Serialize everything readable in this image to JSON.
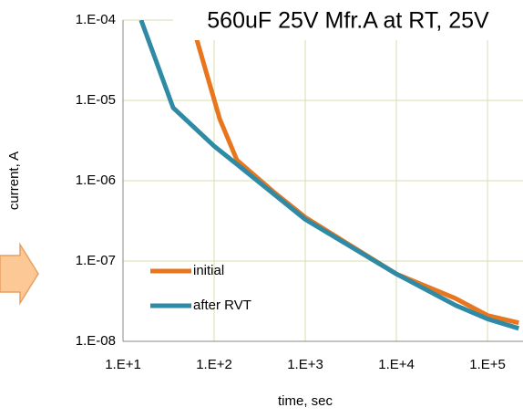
{
  "chart_data": {
    "type": "line",
    "title": "560uF 25V Mfr.A at RT, 25V",
    "x_label": "time, sec",
    "y_label": "current, A",
    "log_x": true,
    "log_y": true,
    "grid": true,
    "xlim": [
      10,
      245000
    ],
    "ylim": [
      1e-08,
      0.0001
    ],
    "xticks": [
      {
        "value": 10,
        "label": "1.E+1"
      },
      {
        "value": 100,
        "label": "1.E+2"
      },
      {
        "value": 1000,
        "label": "1.E+3"
      },
      {
        "value": 10000,
        "label": "1.E+4"
      },
      {
        "value": 100000,
        "label": "1.E+5"
      }
    ],
    "yticks": [
      {
        "value": 1e-08,
        "label": "1.E-08"
      },
      {
        "value": 1e-07,
        "label": "1.E-07"
      },
      {
        "value": 1e-06,
        "label": "1.E-06"
      },
      {
        "value": 1e-05,
        "label": "1.E-05"
      },
      {
        "value": 0.0001,
        "label": "1.E-04"
      }
    ],
    "series": [
      {
        "name": "initial",
        "color": "#e8761e",
        "x": [
          56,
          115,
          178,
          447,
          1000,
          10000,
          45000,
          100000,
          220000
        ],
        "values": [
          0.0001,
          5.9e-06,
          1.8e-06,
          7.3e-07,
          3.5e-07,
          6.9e-08,
          3.4e-08,
          2.1e-08,
          1.7e-08
        ]
      },
      {
        "name": "after RVT",
        "color": "#2f8aa6",
        "x": [
          15.8,
          35.5,
          100,
          178,
          1000,
          10000,
          45000,
          100000,
          220000
        ],
        "values": [
          0.0001,
          8.1e-06,
          2.7e-06,
          1.6e-06,
          3.3e-07,
          6.9e-08,
          2.8e-08,
          1.9e-08,
          1.45e-08
        ]
      }
    ]
  }
}
